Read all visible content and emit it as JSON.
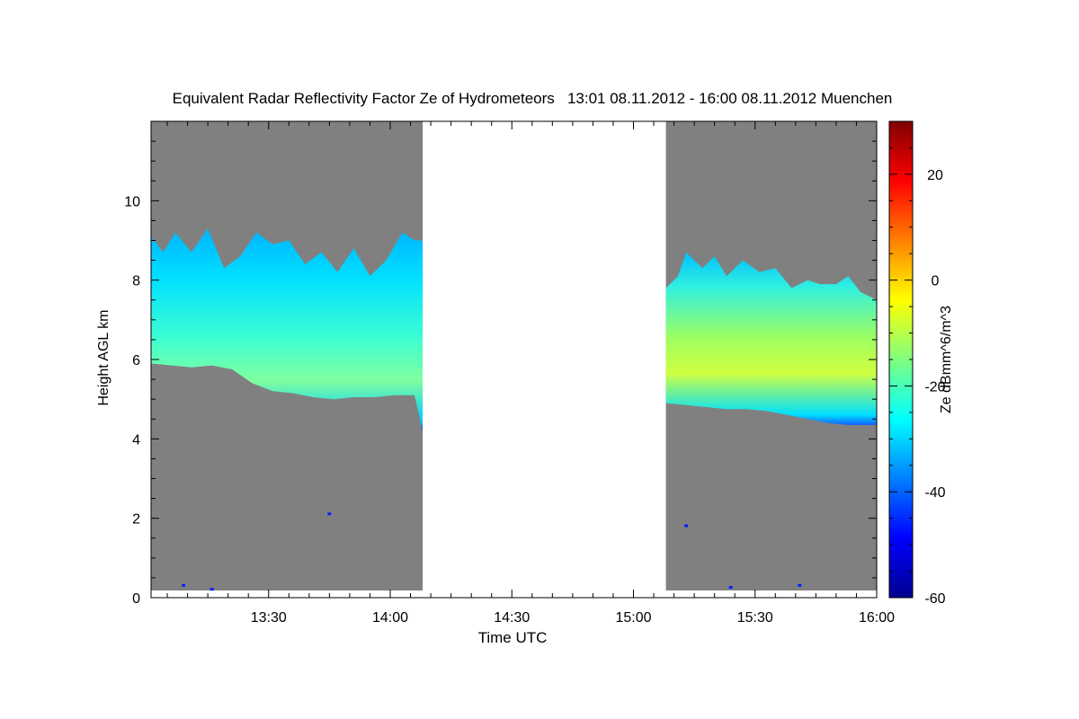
{
  "chart_data": {
    "type": "heatmap",
    "title": "Equivalent Radar Reflectivity Factor Ze of Hydrometeors   13:01 08.11.2012 - 16:00 08.11.2012 Muenchen",
    "xlabel": "Time UTC",
    "ylabel": "Height AGL km",
    "colorbar_label": "Ze dBmm^6/m^3",
    "x_range": [
      "13:01",
      "16:00"
    ],
    "y_range": [
      0,
      12
    ],
    "x_ticks": [
      "13:30",
      "14:00",
      "14:30",
      "15:00",
      "15:30",
      "16:00"
    ],
    "y_ticks": [
      "0",
      "2",
      "4",
      "6",
      "8",
      "10"
    ],
    "colorbar_range": [
      -60,
      30
    ],
    "colorbar_ticks": [
      "-60",
      "-40",
      "-20",
      "0",
      "20"
    ],
    "colormap": "jet",
    "background_color": "#808080",
    "missing_data_color": "#ffffff",
    "missing_data": [
      {
        "start": "14:08",
        "end": "15:08"
      }
    ],
    "cloud_layers": [
      {
        "name": "",
        "start": "13:01",
        "end": "14:08",
        "base_km": [
          [
            0,
            5.9
          ],
          [
            5,
            5.85
          ],
          [
            10,
            5.8
          ],
          [
            15,
            5.85
          ],
          [
            20,
            5.75
          ],
          [
            25,
            5.4
          ],
          [
            30,
            5.2
          ],
          [
            35,
            5.15
          ],
          [
            40,
            5.05
          ],
          [
            45,
            5.0
          ],
          [
            50,
            5.05
          ],
          [
            55,
            5.05
          ],
          [
            60,
            5.1
          ],
          [
            65,
            5.1
          ],
          [
            67,
            4.2
          ]
        ],
        "top_km": [
          [
            0,
            9.1
          ],
          [
            3,
            8.7
          ],
          [
            6,
            9.2
          ],
          [
            10,
            8.7
          ],
          [
            14,
            9.3
          ],
          [
            18,
            8.3
          ],
          [
            22,
            8.6
          ],
          [
            26,
            9.2
          ],
          [
            30,
            8.9
          ],
          [
            34,
            9.0
          ],
          [
            38,
            8.4
          ],
          [
            42,
            8.7
          ],
          [
            46,
            8.2
          ],
          [
            50,
            8.8
          ],
          [
            54,
            8.1
          ],
          [
            58,
            8.5
          ],
          [
            62,
            9.2
          ],
          [
            65,
            9.0
          ],
          [
            67,
            9.0
          ]
        ],
        "peak_dbz": -12
      },
      {
        "name": "",
        "start": "15:08",
        "end": "16:00",
        "base_km": [
          [
            0,
            4.9
          ],
          [
            5,
            4.85
          ],
          [
            10,
            4.8
          ],
          [
            15,
            4.75
          ],
          [
            20,
            4.75
          ],
          [
            25,
            4.7
          ],
          [
            30,
            4.6
          ],
          [
            35,
            4.5
          ],
          [
            40,
            4.4
          ],
          [
            45,
            4.35
          ],
          [
            52,
            4.35
          ]
        ],
        "top_km": [
          [
            0,
            7.8
          ],
          [
            3,
            8.1
          ],
          [
            5,
            8.7
          ],
          [
            9,
            8.3
          ],
          [
            12,
            8.6
          ],
          [
            15,
            8.1
          ],
          [
            19,
            8.5
          ],
          [
            23,
            8.2
          ],
          [
            27,
            8.3
          ],
          [
            31,
            7.8
          ],
          [
            35,
            8.0
          ],
          [
            38,
            7.9
          ],
          [
            42,
            7.9
          ],
          [
            45,
            8.1
          ],
          [
            48,
            7.7
          ],
          [
            52,
            7.5
          ]
        ],
        "peak_dbz": -8
      }
    ],
    "speckles": [
      {
        "time": "13:45",
        "height_km": 2.1,
        "dbz": -45
      },
      {
        "time": "15:13",
        "height_km": 1.8,
        "dbz": -45
      },
      {
        "time": "13:09",
        "height_km": 0.3,
        "dbz": -45
      },
      {
        "time": "13:16",
        "height_km": 0.2,
        "dbz": -45
      },
      {
        "time": "15:24",
        "height_km": 0.25,
        "dbz": -45
      },
      {
        "time": "15:41",
        "height_km": 0.3,
        "dbz": -45
      }
    ]
  }
}
